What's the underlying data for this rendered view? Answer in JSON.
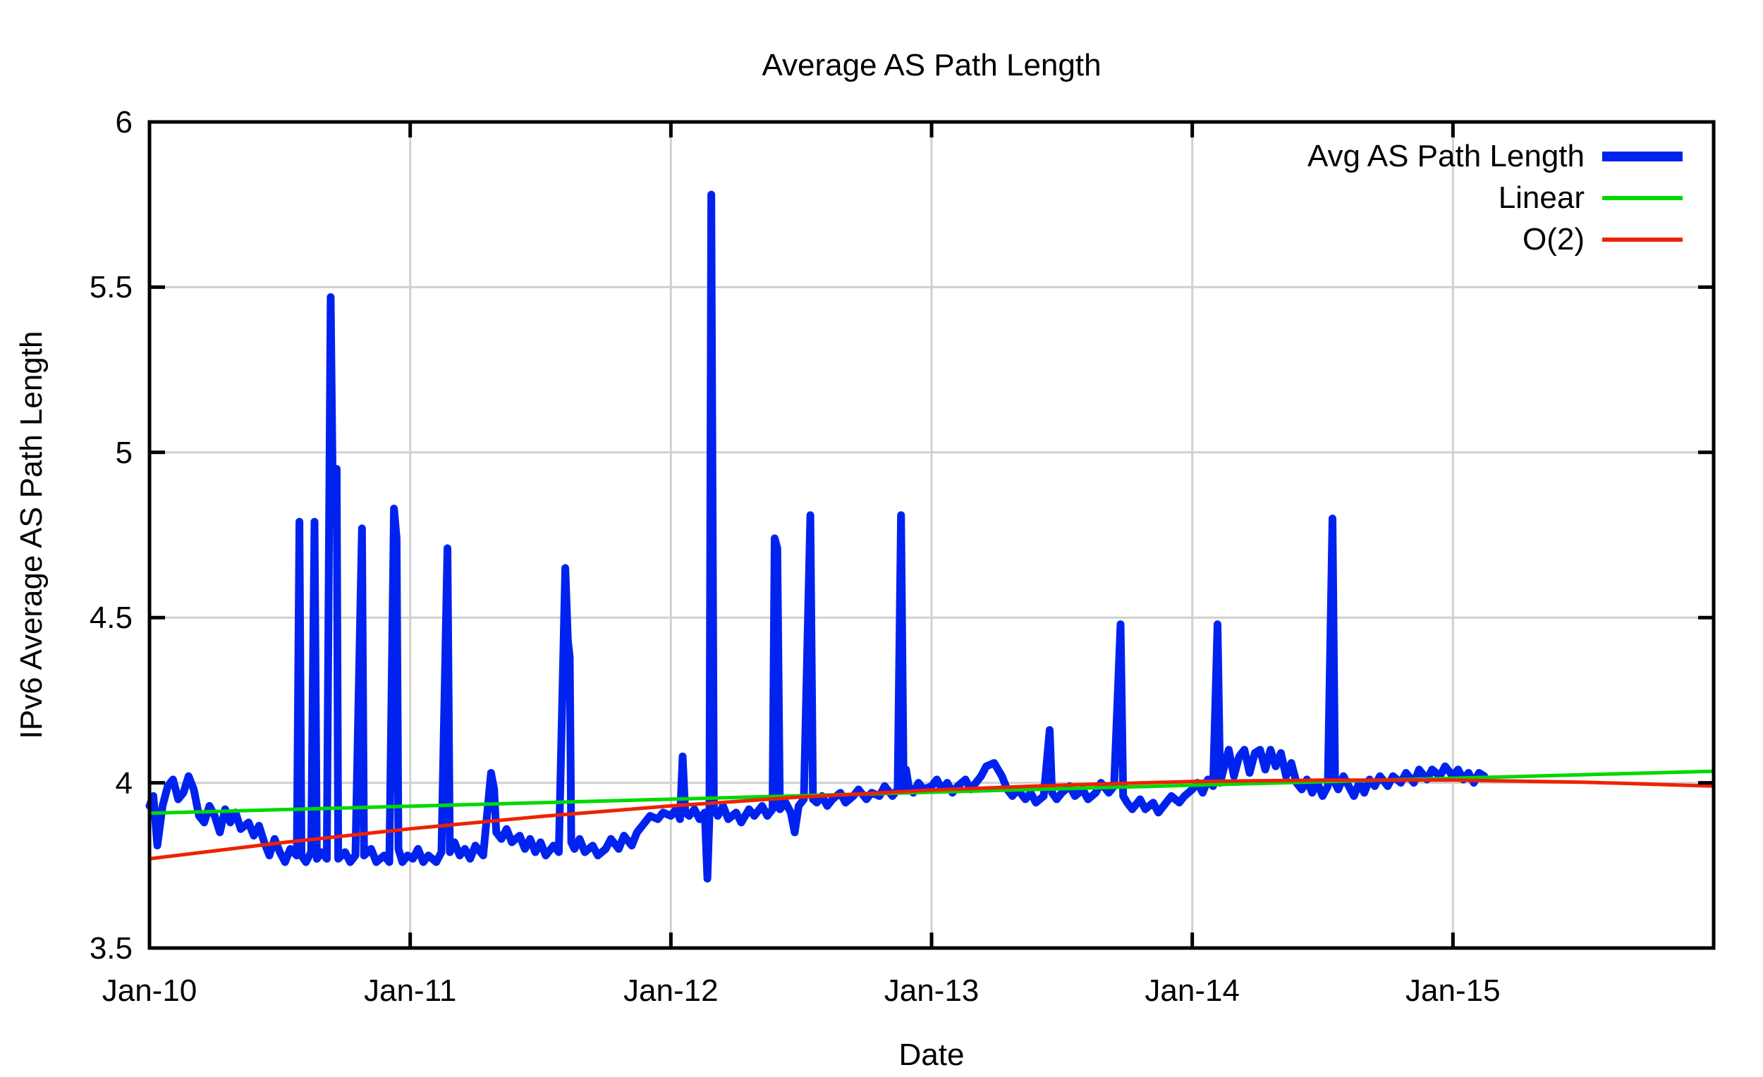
{
  "chart_data": {
    "type": "line",
    "title": "Average AS Path Length",
    "xlabel": "Date",
    "ylabel": "IPv6 Average AS Path Length",
    "grid": true,
    "background": "#ffffff",
    "grid_color": "#d0d0d0",
    "border_color": "#000000",
    "xlim_years": [
      0,
      6
    ],
    "ylim": [
      3.5,
      6
    ],
    "x_ticks": [
      {
        "t": 0,
        "label": "Jan-10"
      },
      {
        "t": 1,
        "label": "Jan-11"
      },
      {
        "t": 2,
        "label": "Jan-12"
      },
      {
        "t": 3,
        "label": "Jan-13"
      },
      {
        "t": 4,
        "label": "Jan-14"
      },
      {
        "t": 5,
        "label": "Jan-15"
      }
    ],
    "y_ticks": [
      {
        "v": 3.5,
        "label": "3.5"
      },
      {
        "v": 4,
        "label": "4"
      },
      {
        "v": 4.5,
        "label": "4.5"
      },
      {
        "v": 5,
        "label": "5"
      },
      {
        "v": 5.5,
        "label": "5.5"
      },
      {
        "v": 6,
        "label": "6"
      }
    ],
    "legend": {
      "position": "top-right",
      "entries": [
        {
          "label": "Avg AS Path Length",
          "color": "#0022ee",
          "sample_thickness": 14
        },
        {
          "label": "Linear",
          "color": "#00d900",
          "sample_thickness": 6
        },
        {
          "label": "O(2)",
          "color": "#ee2200",
          "sample_thickness": 6
        }
      ]
    },
    "series": [
      {
        "name": "Avg AS Path Length",
        "color": "#0022ee",
        "width": 11,
        "points": [
          [
            0.0,
            3.93
          ],
          [
            0.015,
            3.96
          ],
          [
            0.03,
            3.81
          ],
          [
            0.05,
            3.93
          ],
          [
            0.07,
            3.99
          ],
          [
            0.09,
            4.01
          ],
          [
            0.11,
            3.95
          ],
          [
            0.13,
            3.97
          ],
          [
            0.15,
            4.02
          ],
          [
            0.17,
            3.98
          ],
          [
            0.19,
            3.9
          ],
          [
            0.21,
            3.88
          ],
          [
            0.23,
            3.93
          ],
          [
            0.25,
            3.9
          ],
          [
            0.27,
            3.85
          ],
          [
            0.29,
            3.92
          ],
          [
            0.31,
            3.88
          ],
          [
            0.33,
            3.91
          ],
          [
            0.35,
            3.86
          ],
          [
            0.38,
            3.88
          ],
          [
            0.4,
            3.84
          ],
          [
            0.42,
            3.87
          ],
          [
            0.44,
            3.82
          ],
          [
            0.46,
            3.78
          ],
          [
            0.48,
            3.83
          ],
          [
            0.5,
            3.79
          ],
          [
            0.52,
            3.76
          ],
          [
            0.54,
            3.8
          ],
          [
            0.565,
            3.78
          ],
          [
            0.575,
            4.79
          ],
          [
            0.583,
            3.78
          ],
          [
            0.6,
            3.76
          ],
          [
            0.62,
            3.79
          ],
          [
            0.633,
            4.79
          ],
          [
            0.642,
            3.77
          ],
          [
            0.66,
            3.79
          ],
          [
            0.68,
            3.77
          ],
          [
            0.695,
            5.47
          ],
          [
            0.702,
            4.95
          ],
          [
            0.718,
            4.95
          ],
          [
            0.724,
            3.77
          ],
          [
            0.75,
            3.79
          ],
          [
            0.77,
            3.76
          ],
          [
            0.79,
            3.78
          ],
          [
            0.815,
            4.77
          ],
          [
            0.823,
            3.78
          ],
          [
            0.85,
            3.8
          ],
          [
            0.87,
            3.76
          ],
          [
            0.9,
            3.78
          ],
          [
            0.92,
            3.76
          ],
          [
            0.938,
            4.83
          ],
          [
            0.948,
            4.74
          ],
          [
            0.955,
            3.8
          ],
          [
            0.97,
            3.76
          ],
          [
            0.99,
            3.78
          ],
          [
            1.01,
            3.77
          ],
          [
            1.03,
            3.8
          ],
          [
            1.05,
            3.76
          ],
          [
            1.07,
            3.78
          ],
          [
            1.1,
            3.76
          ],
          [
            1.12,
            3.79
          ],
          [
            1.143,
            4.71
          ],
          [
            1.152,
            3.79
          ],
          [
            1.17,
            3.82
          ],
          [
            1.19,
            3.78
          ],
          [
            1.21,
            3.8
          ],
          [
            1.23,
            3.77
          ],
          [
            1.25,
            3.81
          ],
          [
            1.28,
            3.78
          ],
          [
            1.31,
            4.03
          ],
          [
            1.322,
            3.98
          ],
          [
            1.33,
            3.85
          ],
          [
            1.35,
            3.83
          ],
          [
            1.37,
            3.86
          ],
          [
            1.39,
            3.82
          ],
          [
            1.42,
            3.84
          ],
          [
            1.44,
            3.8
          ],
          [
            1.46,
            3.83
          ],
          [
            1.48,
            3.79
          ],
          [
            1.5,
            3.82
          ],
          [
            1.52,
            3.78
          ],
          [
            1.55,
            3.81
          ],
          [
            1.57,
            3.79
          ],
          [
            1.595,
            4.65
          ],
          [
            1.605,
            4.43
          ],
          [
            1.612,
            4.38
          ],
          [
            1.618,
            3.82
          ],
          [
            1.63,
            3.8
          ],
          [
            1.65,
            3.83
          ],
          [
            1.67,
            3.79
          ],
          [
            1.7,
            3.81
          ],
          [
            1.72,
            3.78
          ],
          [
            1.75,
            3.8
          ],
          [
            1.77,
            3.83
          ],
          [
            1.8,
            3.8
          ],
          [
            1.82,
            3.84
          ],
          [
            1.85,
            3.81
          ],
          [
            1.87,
            3.85
          ],
          [
            1.9,
            3.88
          ],
          [
            1.92,
            3.9
          ],
          [
            1.95,
            3.89
          ],
          [
            1.97,
            3.91
          ],
          [
            2.0,
            3.9
          ],
          [
            2.02,
            3.92
          ],
          [
            2.035,
            3.89
          ],
          [
            2.045,
            4.08
          ],
          [
            2.055,
            3.91
          ],
          [
            2.07,
            3.9
          ],
          [
            2.09,
            3.92
          ],
          [
            2.11,
            3.89
          ],
          [
            2.13,
            3.91
          ],
          [
            2.14,
            3.71
          ],
          [
            2.148,
            3.9
          ],
          [
            2.155,
            5.78
          ],
          [
            2.165,
            3.92
          ],
          [
            2.18,
            3.9
          ],
          [
            2.2,
            3.93
          ],
          [
            2.22,
            3.89
          ],
          [
            2.25,
            3.91
          ],
          [
            2.27,
            3.88
          ],
          [
            2.3,
            3.92
          ],
          [
            2.32,
            3.9
          ],
          [
            2.35,
            3.93
          ],
          [
            2.37,
            3.9
          ],
          [
            2.39,
            3.92
          ],
          [
            2.398,
            4.74
          ],
          [
            2.408,
            4.71
          ],
          [
            2.418,
            3.92
          ],
          [
            2.44,
            3.94
          ],
          [
            2.46,
            3.91
          ],
          [
            2.475,
            3.85
          ],
          [
            2.49,
            3.93
          ],
          [
            2.51,
            3.95
          ],
          [
            2.535,
            4.81
          ],
          [
            2.545,
            3.95
          ],
          [
            2.56,
            3.94
          ],
          [
            2.58,
            3.96
          ],
          [
            2.6,
            3.93
          ],
          [
            2.62,
            3.95
          ],
          [
            2.65,
            3.97
          ],
          [
            2.67,
            3.94
          ],
          [
            2.7,
            3.96
          ],
          [
            2.72,
            3.98
          ],
          [
            2.75,
            3.95
          ],
          [
            2.77,
            3.97
          ],
          [
            2.8,
            3.96
          ],
          [
            2.82,
            3.99
          ],
          [
            2.85,
            3.96
          ],
          [
            2.87,
            3.98
          ],
          [
            2.883,
            4.81
          ],
          [
            2.893,
            3.98
          ],
          [
            2.902,
            4.04
          ],
          [
            2.912,
            3.99
          ],
          [
            2.93,
            3.97
          ],
          [
            2.95,
            4.0
          ],
          [
            2.97,
            3.98
          ],
          [
            3.0,
            3.99
          ],
          [
            3.02,
            4.01
          ],
          [
            3.04,
            3.98
          ],
          [
            3.06,
            4.0
          ],
          [
            3.08,
            3.97
          ],
          [
            3.1,
            3.99
          ],
          [
            3.13,
            4.01
          ],
          [
            3.15,
            3.98
          ],
          [
            3.17,
            4.0
          ],
          [
            3.19,
            4.02
          ],
          [
            3.21,
            4.05
          ],
          [
            3.24,
            4.06
          ],
          [
            3.27,
            4.02
          ],
          [
            3.29,
            3.98
          ],
          [
            3.31,
            3.96
          ],
          [
            3.33,
            3.98
          ],
          [
            3.36,
            3.95
          ],
          [
            3.38,
            3.97
          ],
          [
            3.4,
            3.94
          ],
          [
            3.43,
            3.96
          ],
          [
            3.453,
            4.16
          ],
          [
            3.462,
            3.97
          ],
          [
            3.48,
            3.95
          ],
          [
            3.5,
            3.97
          ],
          [
            3.53,
            3.99
          ],
          [
            3.55,
            3.96
          ],
          [
            3.58,
            3.98
          ],
          [
            3.6,
            3.95
          ],
          [
            3.63,
            3.97
          ],
          [
            3.65,
            4.0
          ],
          [
            3.68,
            3.97
          ],
          [
            3.7,
            3.99
          ],
          [
            3.725,
            4.48
          ],
          [
            3.735,
            3.96
          ],
          [
            3.75,
            3.94
          ],
          [
            3.77,
            3.92
          ],
          [
            3.8,
            3.95
          ],
          [
            3.82,
            3.92
          ],
          [
            3.85,
            3.94
          ],
          [
            3.87,
            3.91
          ],
          [
            3.9,
            3.94
          ],
          [
            3.92,
            3.96
          ],
          [
            3.95,
            3.94
          ],
          [
            3.97,
            3.96
          ],
          [
            4.0,
            3.98
          ],
          [
            4.02,
            4.0
          ],
          [
            4.04,
            3.97
          ],
          [
            4.06,
            4.01
          ],
          [
            4.08,
            3.99
          ],
          [
            4.097,
            4.48
          ],
          [
            4.107,
            4.0
          ],
          [
            4.12,
            4.04
          ],
          [
            4.14,
            4.1
          ],
          [
            4.16,
            4.02
          ],
          [
            4.18,
            4.08
          ],
          [
            4.2,
            4.1
          ],
          [
            4.22,
            4.03
          ],
          [
            4.24,
            4.09
          ],
          [
            4.26,
            4.1
          ],
          [
            4.28,
            4.04
          ],
          [
            4.3,
            4.1
          ],
          [
            4.32,
            4.05
          ],
          [
            4.34,
            4.09
          ],
          [
            4.36,
            4.02
          ],
          [
            4.38,
            4.06
          ],
          [
            4.4,
            4.0
          ],
          [
            4.42,
            3.98
          ],
          [
            4.44,
            4.01
          ],
          [
            4.46,
            3.97
          ],
          [
            4.48,
            4.0
          ],
          [
            4.5,
            3.96
          ],
          [
            4.52,
            3.99
          ],
          [
            4.538,
            4.8
          ],
          [
            4.548,
            4.0
          ],
          [
            4.56,
            3.98
          ],
          [
            4.58,
            4.02
          ],
          [
            4.6,
            3.99
          ],
          [
            4.62,
            3.96
          ],
          [
            4.64,
            4.0
          ],
          [
            4.66,
            3.97
          ],
          [
            4.68,
            4.01
          ],
          [
            4.7,
            3.99
          ],
          [
            4.72,
            4.02
          ],
          [
            4.75,
            3.99
          ],
          [
            4.77,
            4.02
          ],
          [
            4.8,
            4.0
          ],
          [
            4.82,
            4.03
          ],
          [
            4.85,
            4.0
          ],
          [
            4.87,
            4.04
          ],
          [
            4.9,
            4.01
          ],
          [
            4.92,
            4.04
          ],
          [
            4.95,
            4.02
          ],
          [
            4.97,
            4.05
          ],
          [
            5.0,
            4.02
          ],
          [
            5.02,
            4.04
          ],
          [
            5.04,
            4.01
          ],
          [
            5.06,
            4.03
          ],
          [
            5.08,
            4.0
          ],
          [
            5.1,
            4.03
          ],
          [
            5.12,
            4.02
          ]
        ]
      },
      {
        "name": "Linear",
        "color": "#00d900",
        "width": 5,
        "points": [
          [
            0,
            3.908
          ],
          [
            6,
            4.035
          ]
        ]
      },
      {
        "name": "O(2)",
        "color": "#ee2200",
        "width": 5,
        "points": [
          [
            0,
            3.77
          ],
          [
            0.5,
            3.818
          ],
          [
            1.0,
            3.861
          ],
          [
            1.5,
            3.898
          ],
          [
            2.0,
            3.93
          ],
          [
            2.5,
            3.957
          ],
          [
            3.0,
            3.978
          ],
          [
            3.5,
            3.993
          ],
          [
            4.0,
            4.004
          ],
          [
            4.5,
            4.008
          ],
          [
            5.0,
            4.008
          ],
          [
            5.5,
            4.002
          ],
          [
            6.0,
            3.99
          ]
        ]
      }
    ]
  }
}
